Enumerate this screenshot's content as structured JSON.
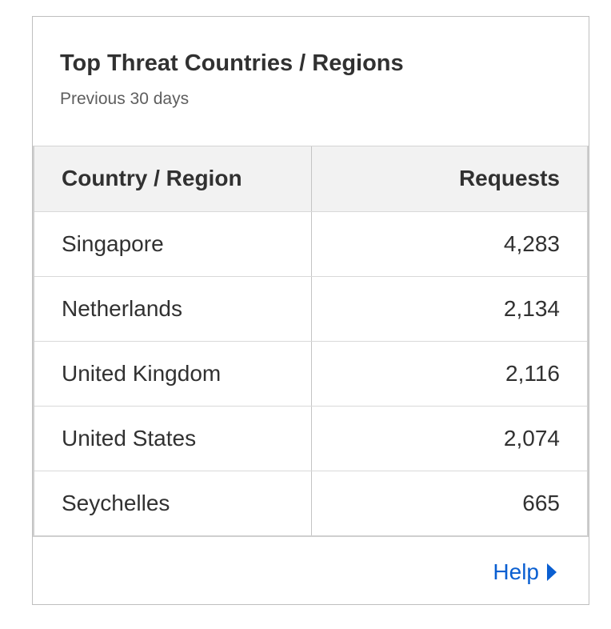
{
  "card": {
    "title": "Top Threat Countries / Regions",
    "subtitle": "Previous 30 days"
  },
  "table": {
    "headers": {
      "country": "Country / Region",
      "requests": "Requests"
    },
    "rows": [
      {
        "country": "Singapore",
        "requests": "4,283"
      },
      {
        "country": "Netherlands",
        "requests": "2,134"
      },
      {
        "country": "United Kingdom",
        "requests": "2,116"
      },
      {
        "country": "United States",
        "requests": "2,074"
      },
      {
        "country": "Seychelles",
        "requests": "665"
      }
    ]
  },
  "footer": {
    "help_label": "Help",
    "help_icon": "caret-right-icon"
  },
  "colors": {
    "link": "#0a5fd1",
    "header_bg": "#f2f2f2",
    "border": "#bfbfbf"
  }
}
